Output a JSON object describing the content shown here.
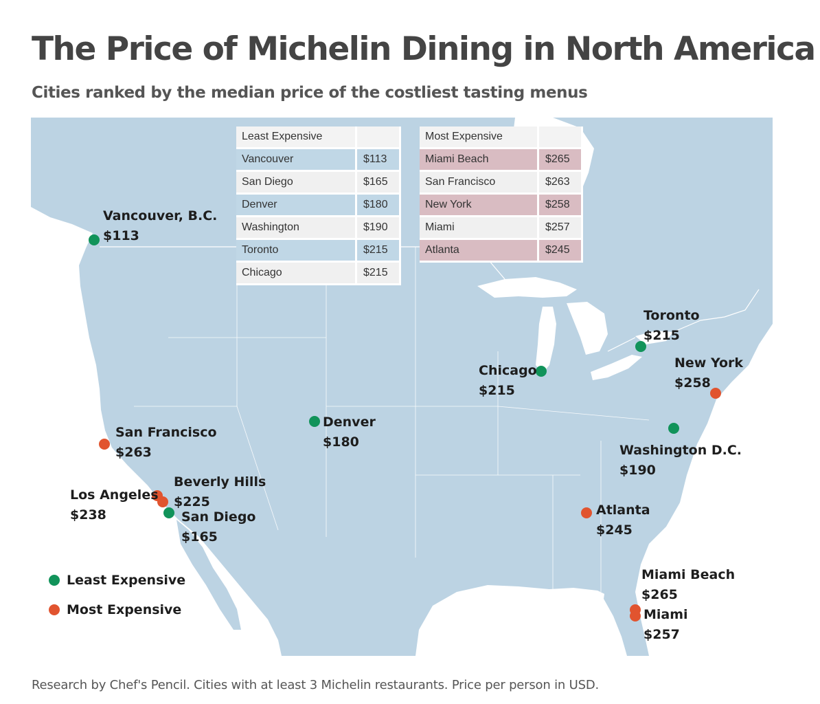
{
  "title": "The Price of Michelin Dining in North America",
  "subtitle": "Cities ranked by the median price of the costliest tasting menus",
  "colors": {
    "least": "#11935a",
    "most": "#e1542f",
    "land": "#bcd3e3",
    "water": "#ffffff"
  },
  "tables": {
    "least": {
      "header": "Least Expensive",
      "rows": [
        {
          "city": "Vancouver",
          "price": "$113"
        },
        {
          "city": "San Diego",
          "price": "$165"
        },
        {
          "city": "Denver",
          "price": "$180"
        },
        {
          "city": "Washington",
          "price": "$190"
        },
        {
          "city": "Toronto",
          "price": "$215"
        },
        {
          "city": "Chicago",
          "price": "$215"
        }
      ]
    },
    "most": {
      "header": "Most Expensive",
      "rows": [
        {
          "city": "Miami Beach",
          "price": "$265"
        },
        {
          "city": "San Francisco",
          "price": "$263"
        },
        {
          "city": "New York",
          "price": "$258"
        },
        {
          "city": "Miami",
          "price": "$257"
        },
        {
          "city": "Atlanta",
          "price": "$245"
        }
      ]
    }
  },
  "cities": {
    "vancouver": {
      "name": "Vancouver, B.C.",
      "price": "$113",
      "category": "least"
    },
    "toronto": {
      "name": "Toronto",
      "price": "$215",
      "category": "least"
    },
    "new_york": {
      "name": "New York",
      "price": "$258",
      "category": "most"
    },
    "chicago": {
      "name": "Chicago",
      "price": "$215",
      "category": "least"
    },
    "denver": {
      "name": "Denver",
      "price": "$180",
      "category": "least"
    },
    "san_francisco": {
      "name": "San Francisco",
      "price": "$263",
      "category": "most"
    },
    "washington": {
      "name": "Washington D.C.",
      "price": "$190",
      "category": "least"
    },
    "beverly_hills": {
      "name": "Beverly Hills",
      "price": "$225",
      "category": "most"
    },
    "los_angeles": {
      "name": "Los Angeles",
      "price": "$238",
      "category": "most"
    },
    "san_diego": {
      "name": "San Diego",
      "price": "$165",
      "category": "least"
    },
    "atlanta": {
      "name": "Atlanta",
      "price": "$245",
      "category": "most"
    },
    "miami_beach": {
      "name": "Miami Beach",
      "price": "$265",
      "category": "most"
    },
    "miami": {
      "name": "Miami",
      "price": "$257",
      "category": "most"
    }
  },
  "legend": {
    "least": "Least Expensive",
    "most": "Most Expensive"
  },
  "footnote": "Research by Chef's Pencil. Cities with at least 3 Michelin restaurants. Price per person in USD."
}
